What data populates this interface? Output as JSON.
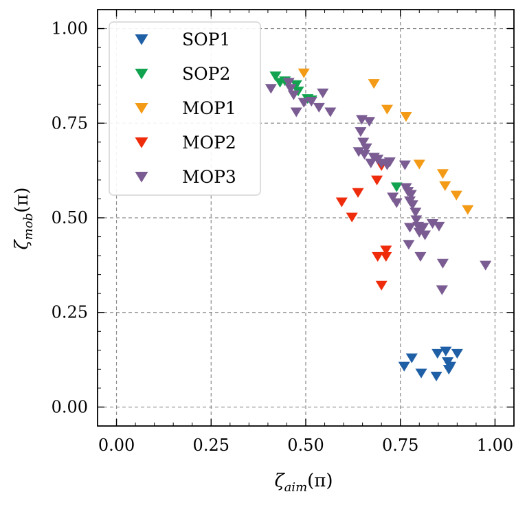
{
  "chart_data": {
    "type": "scatter",
    "marker": "triangle-down",
    "xlabel": {
      "symbol": "ζ",
      "subscript": "aim",
      "unit": "(π)"
    },
    "ylabel": {
      "symbol": "ζ",
      "subscript": "mob",
      "unit": "(π)"
    },
    "xlim": [
      -0.05,
      1.05
    ],
    "ylim": [
      -0.05,
      1.05
    ],
    "xticks": [
      0.0,
      0.25,
      0.5,
      0.75,
      1.0
    ],
    "xtick_labels": [
      "0.00",
      "0.25",
      "0.50",
      "0.75",
      "1.00"
    ],
    "yticks": [
      0.0,
      0.25,
      0.5,
      0.75,
      1.0
    ],
    "ytick_labels": [
      "0.00",
      "0.25",
      "0.50",
      "0.75",
      "1.00"
    ],
    "grid": true,
    "legend_position": "top-left",
    "series": [
      {
        "name": "SOP1",
        "color": "#1f5fa6",
        "points": [
          [
            0.76,
            0.108
          ],
          [
            0.78,
            0.13
          ],
          [
            0.805,
            0.09
          ],
          [
            0.845,
            0.082
          ],
          [
            0.848,
            0.142
          ],
          [
            0.87,
            0.148
          ],
          [
            0.875,
            0.12
          ],
          [
            0.878,
            0.1
          ],
          [
            0.882,
            0.108
          ],
          [
            0.9,
            0.142
          ]
        ]
      },
      {
        "name": "SOP2",
        "color": "#12a350",
        "points": [
          [
            0.42,
            0.875
          ],
          [
            0.432,
            0.858
          ],
          [
            0.445,
            0.862
          ],
          [
            0.475,
            0.852
          ],
          [
            0.48,
            0.835
          ],
          [
            0.505,
            0.815
          ],
          [
            0.515,
            0.812
          ],
          [
            0.74,
            0.582
          ]
        ]
      },
      {
        "name": "MOP1",
        "color": "#f39b16",
        "points": [
          [
            0.495,
            0.883
          ],
          [
            0.68,
            0.855
          ],
          [
            0.715,
            0.787
          ],
          [
            0.765,
            0.768
          ],
          [
            0.8,
            0.642
          ],
          [
            0.862,
            0.617
          ],
          [
            0.868,
            0.585
          ],
          [
            0.898,
            0.56
          ],
          [
            0.928,
            0.522
          ]
        ]
      },
      {
        "name": "MOP2",
        "color": "#ee2c0c",
        "points": [
          [
            0.595,
            0.542
          ],
          [
            0.622,
            0.502
          ],
          [
            0.638,
            0.567
          ],
          [
            0.688,
            0.6
          ],
          [
            0.69,
            0.398
          ],
          [
            0.7,
            0.638
          ],
          [
            0.7,
            0.322
          ],
          [
            0.712,
            0.415
          ],
          [
            0.712,
            0.398
          ]
        ]
      },
      {
        "name": "MOP3",
        "color": "#7a5c92",
        "points": [
          [
            0.408,
            0.842
          ],
          [
            0.455,
            0.858
          ],
          [
            0.46,
            0.842
          ],
          [
            0.468,
            0.825
          ],
          [
            0.475,
            0.78
          ],
          [
            0.495,
            0.805
          ],
          [
            0.515,
            0.808
          ],
          [
            0.535,
            0.792
          ],
          [
            0.545,
            0.83
          ],
          [
            0.565,
            0.78
          ],
          [
            0.64,
            0.675
          ],
          [
            0.645,
            0.728
          ],
          [
            0.648,
            0.76
          ],
          [
            0.652,
            0.7
          ],
          [
            0.655,
            0.668
          ],
          [
            0.66,
            0.685
          ],
          [
            0.668,
            0.755
          ],
          [
            0.672,
            0.645
          ],
          [
            0.68,
            0.66
          ],
          [
            0.69,
            0.655
          ],
          [
            0.7,
            0.645
          ],
          [
            0.715,
            0.64
          ],
          [
            0.722,
            0.648
          ],
          [
            0.73,
            0.555
          ],
          [
            0.74,
            0.54
          ],
          [
            0.762,
            0.64
          ],
          [
            0.765,
            0.58
          ],
          [
            0.77,
            0.57
          ],
          [
            0.775,
            0.545
          ],
          [
            0.778,
            0.562
          ],
          [
            0.772,
            0.43
          ],
          [
            0.775,
            0.475
          ],
          [
            0.782,
            0.535
          ],
          [
            0.79,
            0.515
          ],
          [
            0.792,
            0.495
          ],
          [
            0.797,
            0.478
          ],
          [
            0.8,
            0.462
          ],
          [
            0.803,
            0.398
          ],
          [
            0.81,
            0.475
          ],
          [
            0.815,
            0.455
          ],
          [
            0.835,
            0.485
          ],
          [
            0.852,
            0.478
          ],
          [
            0.862,
            0.38
          ],
          [
            0.86,
            0.31
          ],
          [
            0.975,
            0.375
          ]
        ]
      }
    ]
  }
}
